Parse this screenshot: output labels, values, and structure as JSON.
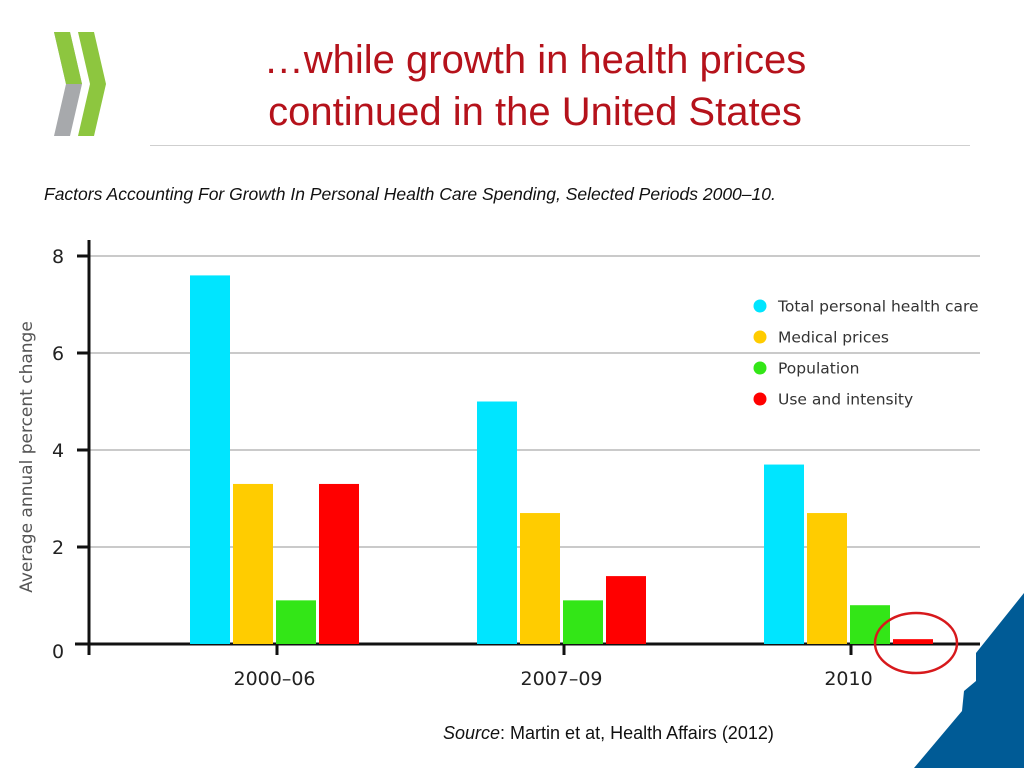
{
  "slide": {
    "title_line1": "…while growth in health prices",
    "title_line2": "continued in the United States",
    "subtitle": "Factors Accounting For Growth In Personal Health Care Spending, Selected Periods 2000–10.",
    "source_label": "Source",
    "source_text": ": Martin et at, Health Affairs (2012)"
  },
  "colors": {
    "title": "#b5121b",
    "logo_green": "#8dc63f",
    "logo_gray": "#a7a9ac",
    "corner_blue": "#005b96",
    "highlight_circle": "#d7191c"
  },
  "chart_data": {
    "type": "bar",
    "title": "Factors Accounting For Growth In Personal Health Care Spending, Selected Periods 2000–10.",
    "xlabel": "",
    "ylabel": "Average annual percent change",
    "ylim": [
      0,
      8
    ],
    "yticks": [
      0,
      2,
      4,
      6,
      8
    ],
    "categories": [
      "2000–06",
      "2007–09",
      "2010"
    ],
    "series": [
      {
        "name": "Total personal health care",
        "color": "#00e5ff",
        "values": [
          7.6,
          5.0,
          3.7
        ]
      },
      {
        "name": "Medical prices",
        "color": "#ffcc00",
        "values": [
          3.3,
          2.7,
          2.7
        ]
      },
      {
        "name": "Population",
        "color": "#33e617",
        "values": [
          0.9,
          0.9,
          0.8
        ]
      },
      {
        "name": "Use and intensity",
        "color": "#ff0000",
        "values": [
          3.3,
          1.4,
          0.1
        ]
      }
    ],
    "legend_position": "top-right",
    "grid": true,
    "annotation": "circle around 2010 Use and intensity bar"
  }
}
